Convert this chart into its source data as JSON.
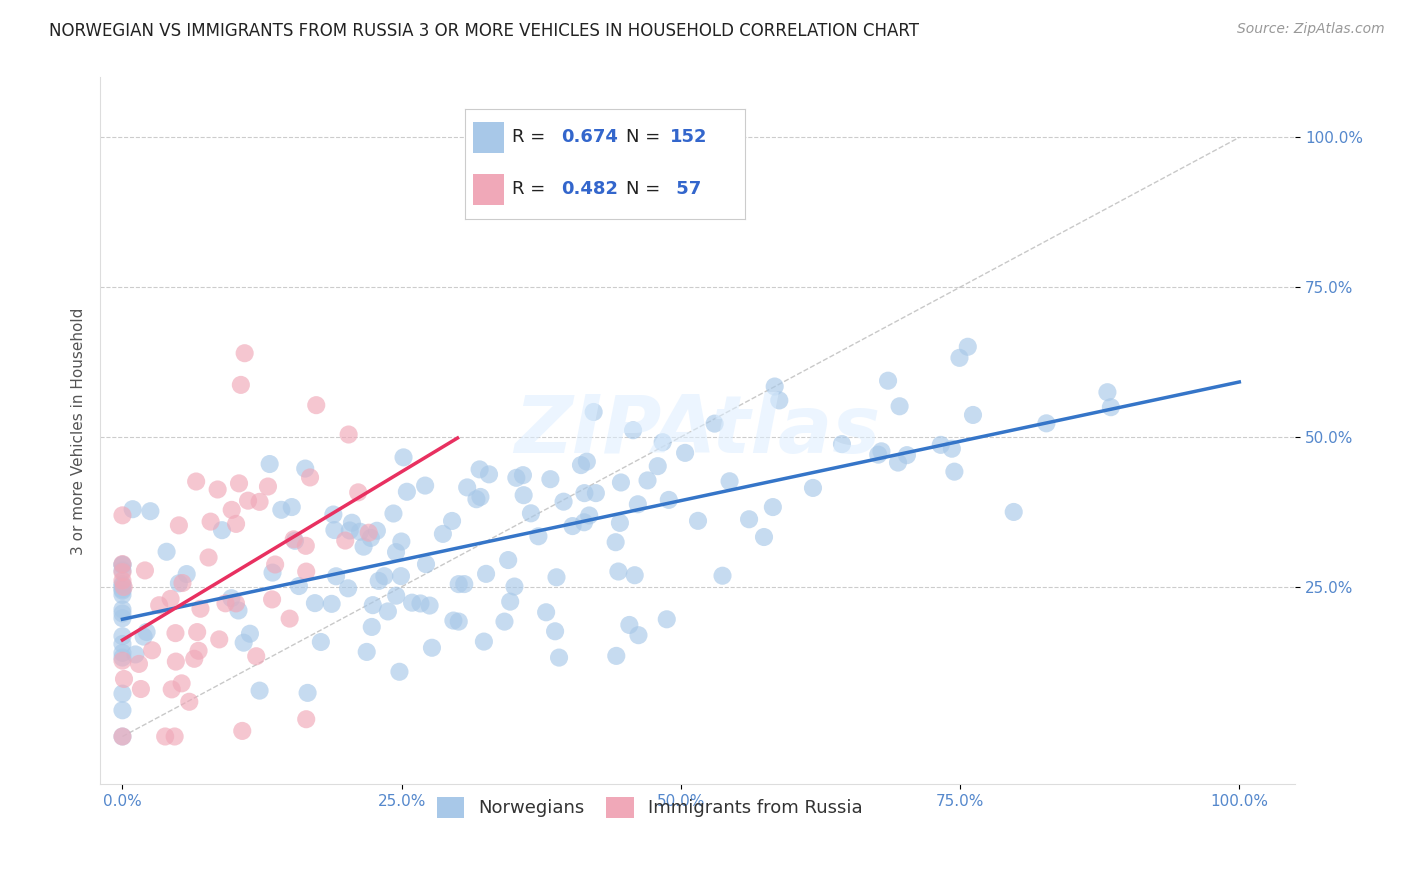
{
  "title": "NORWEGIAN VS IMMIGRANTS FROM RUSSIA 3 OR MORE VEHICLES IN HOUSEHOLD CORRELATION CHART",
  "source": "Source: ZipAtlas.com",
  "ylabel": "3 or more Vehicles in Household",
  "legend_labels": [
    "Norwegians",
    "Immigrants from Russia"
  ],
  "norwegian": {
    "R": 0.674,
    "N": 152,
    "color": "#a8c8e8",
    "line_color": "#3575c8",
    "alpha": 0.65
  },
  "russia": {
    "R": 0.482,
    "N": 57,
    "color": "#f0a8b8",
    "line_color": "#e83060",
    "alpha": 0.65
  },
  "xlim": [
    -0.02,
    1.05
  ],
  "ylim": [
    -0.08,
    1.1
  ],
  "xticks": [
    0.0,
    0.25,
    0.5,
    0.75,
    1.0
  ],
  "xticklabels": [
    "0.0%",
    "25.0%",
    "50.0%",
    "75.0%",
    "100.0%"
  ],
  "yticks": [
    0.25,
    0.5,
    0.75,
    1.0
  ],
  "yticklabels": [
    "25.0%",
    "50.0%",
    "75.0%",
    "100.0%"
  ],
  "background_color": "#ffffff",
  "grid_color": "#cccccc",
  "title_fontsize": 12,
  "axis_label_fontsize": 11,
  "tick_fontsize": 11,
  "watermark": "ZIPAtlas"
}
